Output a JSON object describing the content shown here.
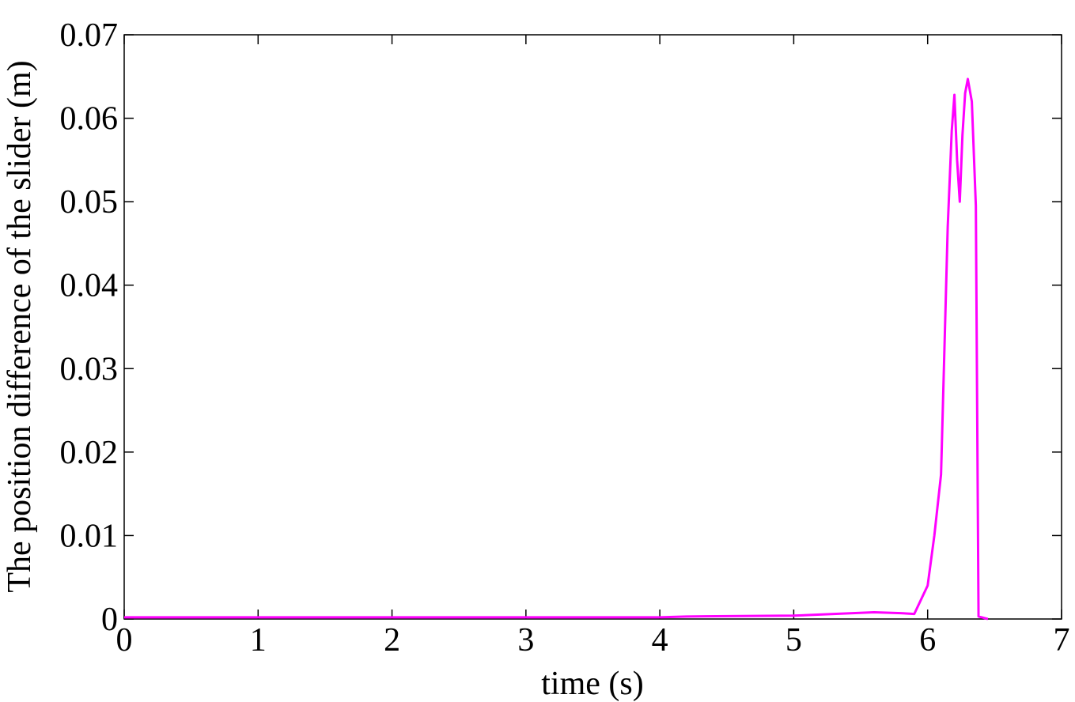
{
  "chart_data": {
    "type": "line",
    "x_label": "time (s)",
    "y_label": "The position difference of the slider (m)",
    "x": [
      0,
      1,
      2,
      3,
      4,
      4.2,
      5,
      5.3,
      5.6,
      5.8,
      5.9,
      6.0,
      6.05,
      6.1,
      6.15,
      6.18,
      6.2,
      6.22,
      6.24,
      6.26,
      6.28,
      6.3,
      6.33,
      6.36,
      6.38,
      6.45
    ],
    "series": [
      {
        "name": "position difference",
        "color": "#ff00ff",
        "values": [
          0.0002,
          0.0002,
          0.0002,
          0.0002,
          0.0002,
          0.0003,
          0.0004,
          0.0006,
          0.0008,
          0.0007,
          0.0006,
          0.004,
          0.01,
          0.0173,
          0.047,
          0.0585,
          0.0628,
          0.055,
          0.05,
          0.058,
          0.063,
          0.0647,
          0.062,
          0.0495,
          0.0003,
          0
        ]
      }
    ],
    "xlim": [
      0,
      7
    ],
    "ylim": [
      0,
      0.07
    ],
    "xticks": [
      0,
      1,
      2,
      3,
      4,
      5,
      6,
      7
    ],
    "yticks": [
      0,
      0.01,
      0.02,
      0.03,
      0.04,
      0.05,
      0.06,
      0.07
    ],
    "grid": false
  }
}
